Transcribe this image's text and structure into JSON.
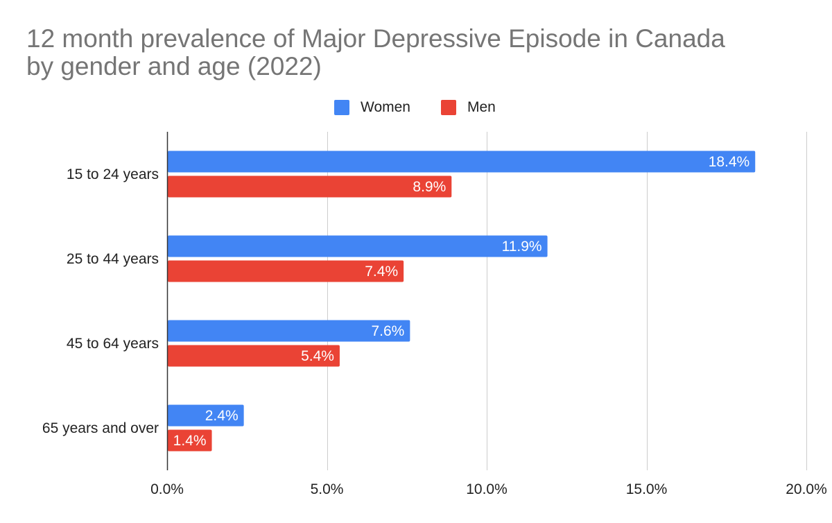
{
  "chart_data": {
    "type": "bar",
    "orientation": "horizontal",
    "title_lines": [
      "12 month prevalence of Major Depressive Episode in Canada",
      "by gender and age (2022)"
    ],
    "categories": [
      "15 to 24 years",
      "25 to 44 years",
      "45 to 64 years",
      "65 years and over"
    ],
    "series": [
      {
        "name": "Women",
        "color": "#4285f4",
        "values": [
          18.4,
          11.9,
          7.6,
          2.4
        ],
        "labels": [
          "18.4%",
          "11.9%",
          "7.6%",
          "2.4%"
        ]
      },
      {
        "name": "Men",
        "color": "#ea4335",
        "values": [
          8.9,
          7.4,
          5.4,
          1.4
        ],
        "labels": [
          "8.9%",
          "7.4%",
          "5.4%",
          "1.4%"
        ]
      }
    ],
    "xlim": [
      0,
      20
    ],
    "xticks": [
      0,
      5,
      10,
      15,
      20
    ],
    "xtick_labels": [
      "0.0%",
      "5.0%",
      "10.0%",
      "15.0%",
      "20.0%"
    ],
    "grid": true,
    "legend_position": "top"
  }
}
